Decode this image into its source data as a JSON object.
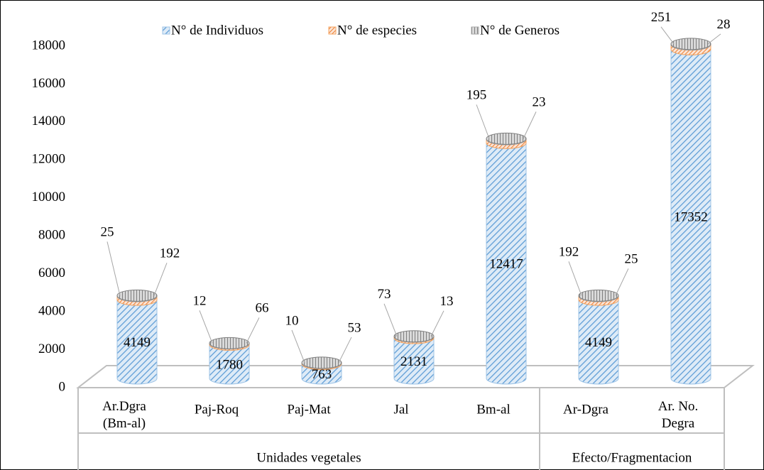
{
  "chart_data": {
    "type": "cylinder-stacked-bar",
    "groups": [
      {
        "name": "Unidades vegetales",
        "categories": [
          "Ar.Dgra (Bm-al)",
          "Paj-Roq",
          "Paj-Mat",
          "Jal",
          "Bm-al"
        ]
      },
      {
        "name": "Efecto/Fragmentacion",
        "categories": [
          "Ar-Dgra",
          "Ar. No. Degra"
        ]
      }
    ],
    "series": [
      {
        "name": "N° de Individuos",
        "color": "#9dc3e6",
        "values": [
          4149,
          1780,
          763,
          2131,
          12417,
          4149,
          17352
        ]
      },
      {
        "name": "N° de especies",
        "color": "#f4a460",
        "values": [
          192,
          66,
          53,
          73,
          195,
          192,
          251
        ]
      },
      {
        "name": "N° de Generos",
        "color": "#a6a6a6",
        "values": [
          25,
          12,
          10,
          13,
          23,
          25,
          28
        ]
      }
    ],
    "ylim": [
      0,
      18000
    ],
    "yticks": [
      0,
      2000,
      4000,
      6000,
      8000,
      10000,
      12000,
      14000,
      16000,
      18000
    ],
    "legend": "top"
  }
}
